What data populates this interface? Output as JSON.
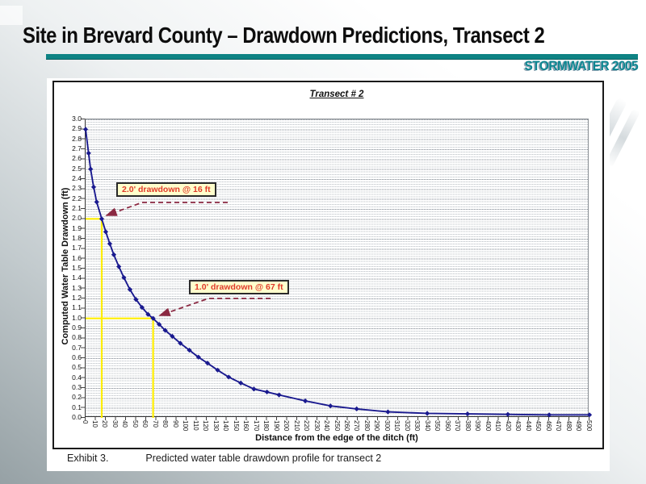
{
  "slide": {
    "title": "Site in Brevard County – Drawdown Predictions, Transect 2",
    "brand": "STORMWATER 2005",
    "caption_label": "Exhibit 3.",
    "caption_text": "Predicted water table drawdown profile for transect 2"
  },
  "colors": {
    "accent_teal": "#0e8384",
    "curve_navy": "#1a1a8f",
    "annotation_red": "#e03a2a",
    "annotation_bg": "#ffffcc",
    "arrow_darkred": "#8b2942",
    "highlight_yellow": "#ffee00",
    "background_gray": "#96a1a5"
  },
  "chart_data": {
    "type": "line",
    "title": "Transect # 2",
    "xlabel": "Distance from the edge of the ditch (ft)",
    "ylabel": "Computed Water Table Drawdown (ft)",
    "xlim": [
      0,
      500
    ],
    "ylim": [
      0,
      3.0
    ],
    "x_tick_step": 10,
    "y_tick_step": 0.1,
    "grid": "dense dotted horizontal lines every 0.025 ft, solid line every 0.1 ft",
    "legend": "none",
    "x_ticks": [
      0,
      10,
      20,
      30,
      40,
      50,
      60,
      70,
      80,
      90,
      100,
      110,
      120,
      130,
      140,
      150,
      160,
      170,
      180,
      190,
      200,
      210,
      220,
      230,
      240,
      250,
      260,
      270,
      280,
      290,
      300,
      310,
      320,
      330,
      340,
      350,
      360,
      370,
      380,
      390,
      400,
      410,
      420,
      430,
      440,
      450,
      460,
      470,
      480,
      490,
      500
    ],
    "y_ticks": [
      "3.0",
      "2.9",
      "2.8",
      "2.7",
      "2.6",
      "2.5",
      "2.4",
      "2.3",
      "2.2",
      "2.1",
      "2.0",
      "1.9",
      "1.8",
      "1.7",
      "1.6",
      "1.5",
      "1.4",
      "1.3",
      "1.2",
      "1.1",
      "1.0",
      "0.9",
      "0.8",
      "0.7",
      "0.6",
      "0.5",
      "0.4",
      "0.3",
      "0.2",
      "0.1",
      "0.0"
    ],
    "series": [
      {
        "name": "Computed water table drawdown",
        "marker": "diamond",
        "color": "#1a1a8f",
        "points": [
          [
            0,
            2.9
          ],
          [
            3,
            2.66
          ],
          [
            5,
            2.5
          ],
          [
            8,
            2.32
          ],
          [
            11,
            2.17
          ],
          [
            16,
            2.0
          ],
          [
            20,
            1.87
          ],
          [
            24,
            1.75
          ],
          [
            28,
            1.64
          ],
          [
            33,
            1.52
          ],
          [
            38,
            1.41
          ],
          [
            44,
            1.29
          ],
          [
            50,
            1.19
          ],
          [
            56,
            1.11
          ],
          [
            62,
            1.04
          ],
          [
            67,
            1.0
          ],
          [
            73,
            0.94
          ],
          [
            79,
            0.88
          ],
          [
            86,
            0.82
          ],
          [
            94,
            0.75
          ],
          [
            103,
            0.68
          ],
          [
            112,
            0.61
          ],
          [
            121,
            0.55
          ],
          [
            131,
            0.48
          ],
          [
            142,
            0.41
          ],
          [
            154,
            0.35
          ],
          [
            167,
            0.29
          ],
          [
            180,
            0.26
          ],
          [
            192,
            0.23
          ],
          [
            218,
            0.17
          ],
          [
            243,
            0.12
          ],
          [
            269,
            0.09
          ],
          [
            300,
            0.06
          ],
          [
            339,
            0.045
          ],
          [
            379,
            0.04
          ],
          [
            419,
            0.035
          ],
          [
            460,
            0.03
          ],
          [
            500,
            0.03
          ]
        ]
      }
    ],
    "annotations": [
      {
        "label": "2.0' drawdown @ 16 ft",
        "x": 16,
        "y": 2.0
      },
      {
        "label": "1.0' drawdown @ 67 ft",
        "x": 67,
        "y": 1.0
      }
    ]
  }
}
